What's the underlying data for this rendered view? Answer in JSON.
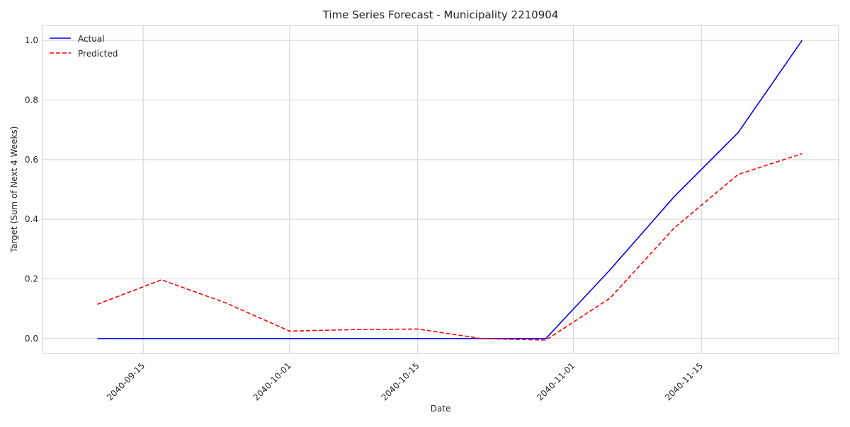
{
  "chart_data": {
    "type": "line",
    "title": "Time Series Forecast - Municipality 2210904",
    "xlabel": "Date",
    "ylabel": "Target (Sum of Next 4 Weeks)",
    "x_ticks": [
      "2040-09-15",
      "2040-10-01",
      "2040-10-15",
      "2040-11-01",
      "2040-11-15"
    ],
    "y_ticks": [
      "0.0",
      "0.2",
      "0.4",
      "0.6",
      "0.8",
      "1.0"
    ],
    "xlim": [
      "2040-09-04",
      "2040-11-30"
    ],
    "ylim": [
      -0.05,
      1.05
    ],
    "grid": true,
    "legend_position": "top-left",
    "x": [
      "2040-09-10",
      "2040-09-17",
      "2040-09-24",
      "2040-10-01",
      "2040-10-08",
      "2040-10-15",
      "2040-10-22",
      "2040-10-29",
      "2040-11-05",
      "2040-11-12",
      "2040-11-19",
      "2040-11-26"
    ],
    "series": [
      {
        "name": "Actual",
        "color": "#0000ff",
        "dash": "solid",
        "values": [
          0.0,
          0.0,
          0.0,
          0.0,
          0.0,
          0.0,
          0.0,
          0.0,
          0.23,
          0.475,
          0.69,
          1.0
        ]
      },
      {
        "name": "Predicted",
        "color": "#ff0000",
        "dash": "dashed",
        "values": [
          0.115,
          0.197,
          0.12,
          0.025,
          0.03,
          0.032,
          0.0,
          -0.005,
          0.135,
          0.37,
          0.55,
          0.62
        ]
      }
    ]
  }
}
